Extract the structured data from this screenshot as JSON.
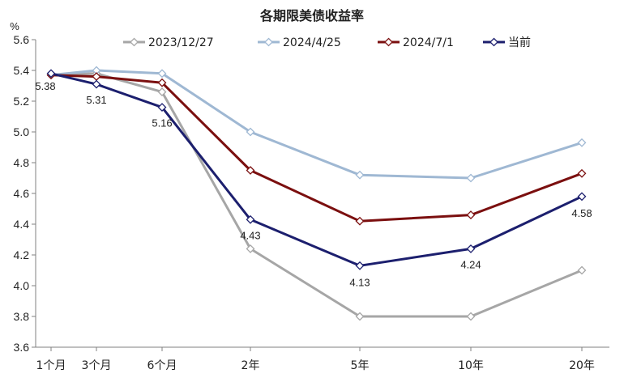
{
  "chart_data": {
    "type": "line",
    "title": "各期限美债收益率",
    "y_unit": "%",
    "categories": [
      "1个月",
      "3个月",
      "6个月",
      "2年",
      "5年",
      "10年",
      "20年"
    ],
    "ylim": [
      3.6,
      5.6
    ],
    "yticks": [
      "3.6",
      "3.8",
      "4.0",
      "4.2",
      "4.4",
      "4.6",
      "4.8",
      "5.0",
      "5.2",
      "5.4",
      "5.6"
    ],
    "grid": false,
    "legend_position": "top",
    "series": [
      {
        "name": "2023/12/27",
        "color": "#a6a6a6",
        "values": [
          5.37,
          5.38,
          5.26,
          4.24,
          3.8,
          3.8,
          4.1
        ]
      },
      {
        "name": "2024/4/25",
        "color": "#9fb8d3",
        "values": [
          5.37,
          5.4,
          5.38,
          5.0,
          4.72,
          4.7,
          4.93
        ]
      },
      {
        "name": "2024/7/1",
        "color": "#7b0f0f",
        "values": [
          5.37,
          5.36,
          5.32,
          4.75,
          4.42,
          4.46,
          4.73
        ]
      },
      {
        "name": "当前",
        "color": "#1c1f6e",
        "values": [
          5.38,
          5.31,
          5.16,
          4.43,
          4.13,
          4.24,
          4.58
        ]
      }
    ],
    "data_labels": [
      {
        "series": 3,
        "index": 0,
        "text": "5.38"
      },
      {
        "series": 3,
        "index": 1,
        "text": "5.31"
      },
      {
        "series": 3,
        "index": 2,
        "text": "5.16"
      },
      {
        "series": 3,
        "index": 3,
        "text": "4.43"
      },
      {
        "series": 3,
        "index": 4,
        "text": "4.13"
      },
      {
        "series": 3,
        "index": 5,
        "text": "4.24"
      },
      {
        "series": 3,
        "index": 6,
        "text": "4.58"
      }
    ]
  }
}
